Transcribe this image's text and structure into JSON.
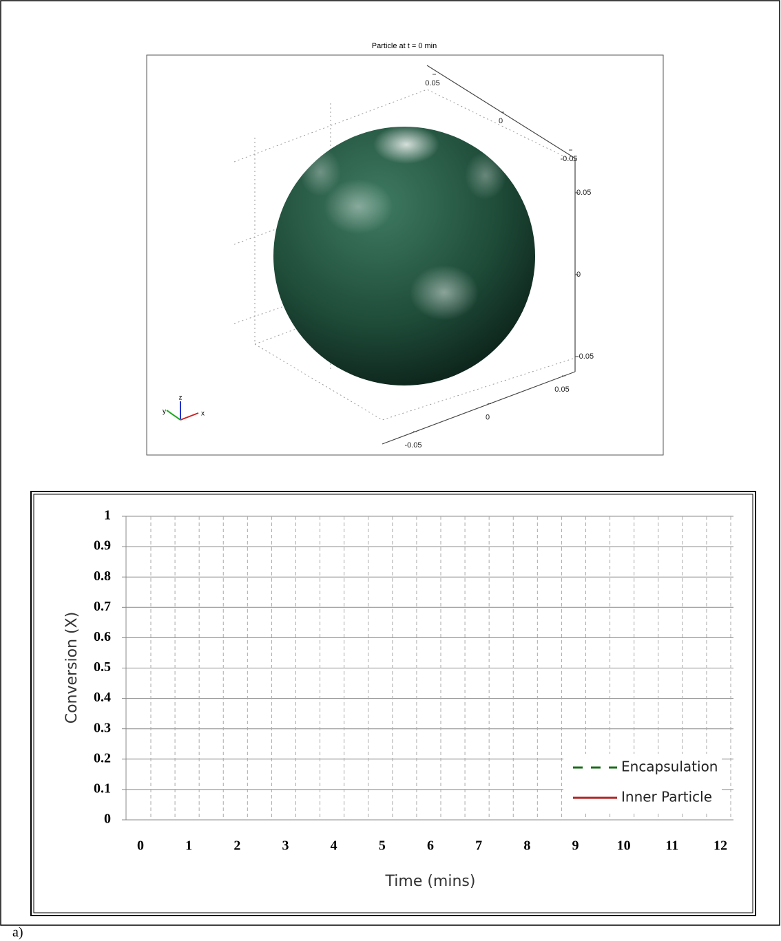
{
  "chart_data": [
    {
      "type": "surface3d",
      "title": "Particle at t = 0 min",
      "xlim": [
        -0.05,
        0.05
      ],
      "xticks": [
        -0.05,
        0,
        0.05
      ],
      "ylim": [
        -0.05,
        0.05
      ],
      "yticks": [
        -0.05,
        0,
        0.05
      ],
      "zlim": [
        -0.05,
        0.05
      ],
      "zticks": [
        -0.05,
        0,
        0.05
      ],
      "color": "#1f4d3a",
      "axes_labels": [
        "x",
        "y",
        "z"
      ]
    },
    {
      "type": "line",
      "xlabel": "Time (mins)",
      "ylabel": "Conversion (X)",
      "categories": [
        "0",
        "1",
        "2",
        "3",
        "4",
        "5",
        "6",
        "7",
        "8",
        "9",
        "10",
        "11",
        "12"
      ],
      "series": [
        {
          "name": "Encapsulation",
          "color": "#1a6e1a",
          "dash": true,
          "values": [
            null,
            null,
            null,
            null,
            null,
            null,
            null,
            null,
            null,
            null,
            null,
            null,
            null
          ]
        },
        {
          "name": "Inner Particle",
          "color": "#b22222",
          "dash": false,
          "values": [
            null,
            null,
            null,
            null,
            null,
            null,
            null,
            null,
            null,
            null,
            null,
            null,
            null
          ]
        }
      ],
      "ylim": [
        0,
        1
      ],
      "yticks": [
        0,
        0.1,
        0.2,
        0.3,
        0.4,
        0.5,
        0.6,
        0.7,
        0.8,
        0.9,
        1
      ],
      "grid": true,
      "legend": "lower right"
    }
  ],
  "caption": "a)"
}
